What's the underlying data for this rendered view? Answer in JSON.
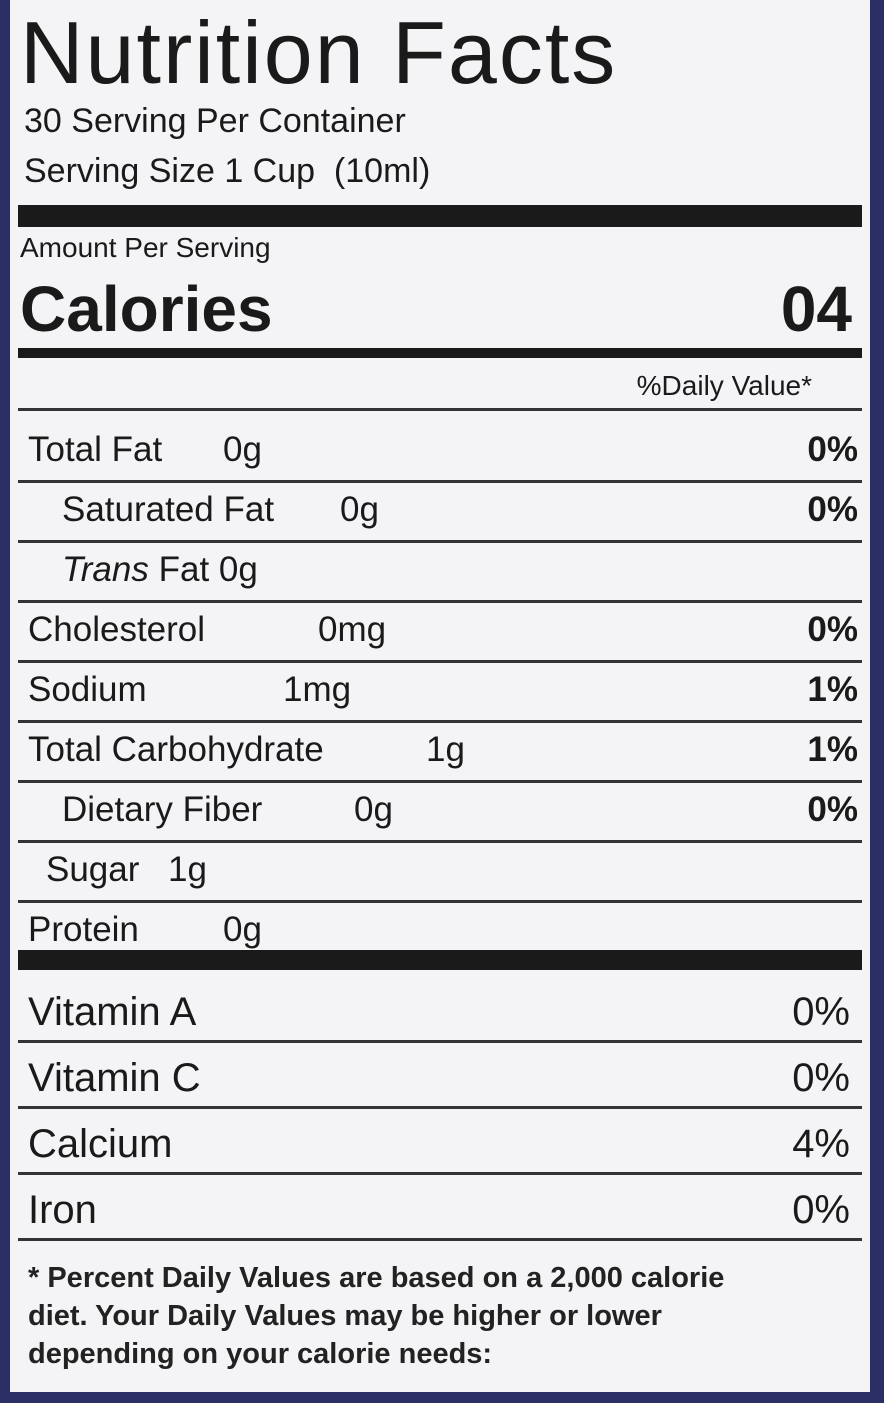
{
  "header": {
    "title": "Nutrition Facts",
    "servings": "30 Serving Per Container",
    "serving_size": "Serving Size 1 Cup  (10ml)"
  },
  "amount_per_serving": "Amount Per Serving",
  "calories": {
    "label": "Calories",
    "value": "04"
  },
  "dv_header": "%Daily Value*",
  "nutrients": [
    {
      "name": "Total Fat",
      "amount": "0g",
      "dv": "0%"
    },
    {
      "name": "Saturated Fat",
      "amount": "0g",
      "dv": "0%"
    },
    {
      "name_italic": "Trans",
      "name": "Fat",
      "amount": "0g"
    },
    {
      "name": "Cholesterol",
      "amount": "0mg",
      "dv": "0%"
    },
    {
      "name": "Sodium",
      "amount": "1mg",
      "dv": "1%"
    },
    {
      "name": "Total Carbohydrate",
      "amount": "1g",
      "dv": "1%"
    },
    {
      "name": "Dietary Fiber",
      "amount": "0g",
      "dv": "0%"
    },
    {
      "name": "Sugar",
      "amount": "1g"
    },
    {
      "name": "Protein",
      "amount": "0g"
    }
  ],
  "vitamins": [
    {
      "name": "Vitamin A",
      "dv": "0%"
    },
    {
      "name": "Vitamin C",
      "dv": "0%"
    },
    {
      "name": "Calcium",
      "dv": "4%"
    },
    {
      "name": "Iron",
      "dv": "0%"
    }
  ],
  "footnote": [
    "* Percent Daily Values are based on a 2,000 calorie",
    "diet. Your Daily Values may be higher or lower",
    "depending on your calorie needs:"
  ]
}
